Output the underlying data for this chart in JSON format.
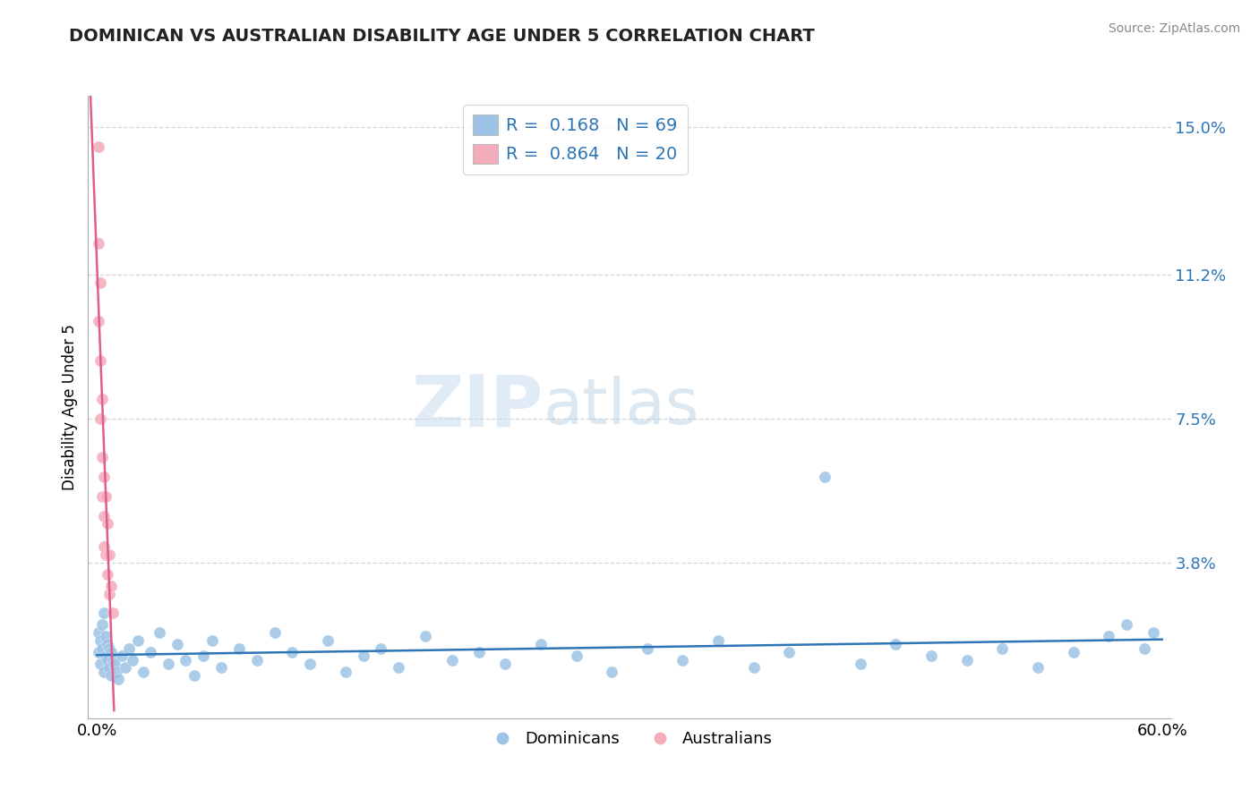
{
  "title": "DOMINICAN VS AUSTRALIAN DISABILITY AGE UNDER 5 CORRELATION CHART",
  "source": "Source: ZipAtlas.com",
  "ylabel": "Disability Age Under 5",
  "xlim": [
    -0.005,
    0.605
  ],
  "ylim": [
    -0.002,
    0.158
  ],
  "yticks": [
    0.038,
    0.075,
    0.112,
    0.15
  ],
  "ytick_labels": [
    "3.8%",
    "7.5%",
    "11.2%",
    "15.0%"
  ],
  "xticks": [
    0.0,
    0.6
  ],
  "xtick_labels": [
    "0.0%",
    "60.0%"
  ],
  "dominican_color": "#9DC3E6",
  "australian_color": "#F4ABBA",
  "dominican_line_color": "#2E75B6",
  "australian_line_color": "#E05C8A",
  "R_dominican": 0.168,
  "N_dominican": 69,
  "R_australian": 0.864,
  "N_australian": 20,
  "dominican_x": [
    0.001,
    0.001,
    0.002,
    0.002,
    0.003,
    0.003,
    0.004,
    0.004,
    0.005,
    0.005,
    0.006,
    0.006,
    0.007,
    0.007,
    0.008,
    0.008,
    0.009,
    0.01,
    0.011,
    0.012,
    0.014,
    0.016,
    0.018,
    0.02,
    0.023,
    0.026,
    0.03,
    0.035,
    0.04,
    0.045,
    0.05,
    0.055,
    0.06,
    0.065,
    0.07,
    0.08,
    0.09,
    0.1,
    0.11,
    0.12,
    0.13,
    0.14,
    0.15,
    0.16,
    0.17,
    0.185,
    0.2,
    0.215,
    0.23,
    0.25,
    0.27,
    0.29,
    0.31,
    0.33,
    0.35,
    0.37,
    0.39,
    0.41,
    0.43,
    0.45,
    0.47,
    0.49,
    0.51,
    0.53,
    0.55,
    0.57,
    0.58,
    0.59,
    0.595
  ],
  "dominican_y": [
    0.02,
    0.015,
    0.018,
    0.012,
    0.022,
    0.016,
    0.025,
    0.01,
    0.019,
    0.014,
    0.017,
    0.013,
    0.016,
    0.011,
    0.015,
    0.009,
    0.013,
    0.012,
    0.01,
    0.008,
    0.014,
    0.011,
    0.016,
    0.013,
    0.018,
    0.01,
    0.015,
    0.02,
    0.012,
    0.017,
    0.013,
    0.009,
    0.014,
    0.018,
    0.011,
    0.016,
    0.013,
    0.02,
    0.015,
    0.012,
    0.018,
    0.01,
    0.014,
    0.016,
    0.011,
    0.019,
    0.013,
    0.015,
    0.012,
    0.017,
    0.014,
    0.01,
    0.016,
    0.013,
    0.018,
    0.011,
    0.015,
    0.06,
    0.012,
    0.017,
    0.014,
    0.013,
    0.016,
    0.011,
    0.015,
    0.019,
    0.022,
    0.016,
    0.02
  ],
  "australian_x": [
    0.001,
    0.001,
    0.001,
    0.002,
    0.002,
    0.002,
    0.003,
    0.003,
    0.003,
    0.004,
    0.004,
    0.004,
    0.005,
    0.005,
    0.006,
    0.006,
    0.007,
    0.007,
    0.008,
    0.009
  ],
  "australian_y": [
    0.145,
    0.12,
    0.1,
    0.11,
    0.09,
    0.075,
    0.08,
    0.065,
    0.055,
    0.06,
    0.05,
    0.042,
    0.055,
    0.04,
    0.048,
    0.035,
    0.04,
    0.03,
    0.032,
    0.025
  ]
}
